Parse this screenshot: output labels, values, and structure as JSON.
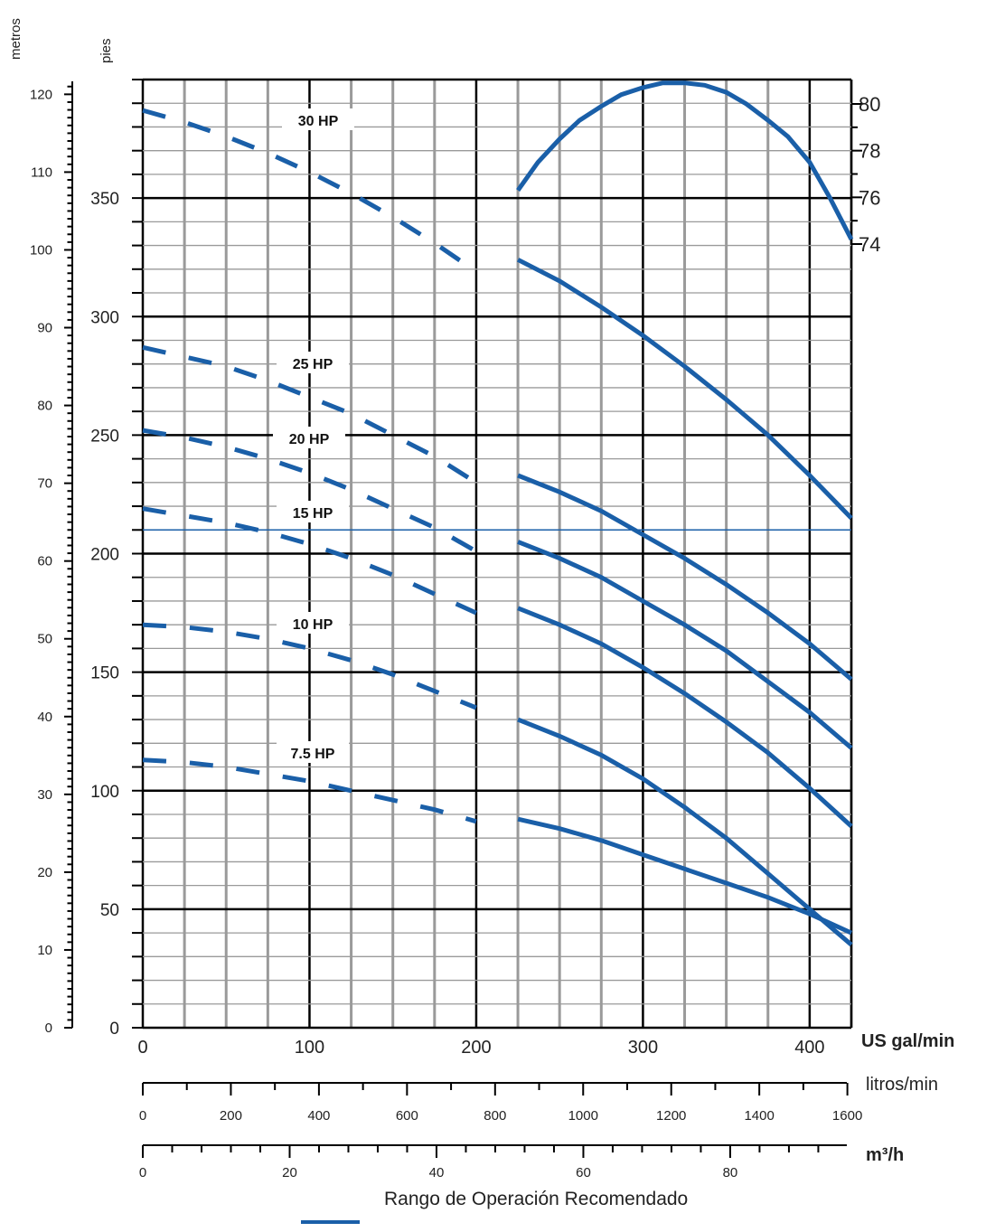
{
  "chart_data": {
    "type": "line",
    "title": "",
    "axes": {
      "flow_gpm": {
        "label": "US gal/min",
        "range": [
          0,
          425
        ],
        "ticks": [
          0,
          100,
          200,
          300,
          400
        ]
      },
      "flow_lpm": {
        "label": "litros/min",
        "range": [
          0,
          1609
        ],
        "ticks": [
          0,
          200,
          400,
          600,
          800,
          1000,
          1200,
          1400,
          1600
        ]
      },
      "flow_m3h": {
        "label": "m³/h",
        "range": [
          0,
          96.5
        ],
        "ticks": [
          0,
          20,
          40,
          60,
          80
        ]
      },
      "head_ft": {
        "label": "pies",
        "range": [
          0,
          400
        ],
        "ticks": [
          0,
          50,
          100,
          150,
          200,
          250,
          300,
          350
        ]
      },
      "head_m": {
        "label": "metros",
        "range": [
          0,
          121.9
        ],
        "ticks": [
          0,
          10,
          20,
          30,
          40,
          50,
          60,
          70,
          80,
          90,
          100,
          110,
          120
        ]
      },
      "efficiency_pct": {
        "range": [
          70,
          82
        ],
        "ticks": [
          74,
          76,
          78,
          80
        ]
      }
    },
    "series": [
      {
        "name": "30 HP",
        "dashed": [
          [
            0,
            387
          ],
          [
            25,
            382
          ],
          [
            50,
            376
          ],
          [
            75,
            369
          ],
          [
            100,
            361
          ],
          [
            125,
            352
          ],
          [
            150,
            342
          ],
          [
            175,
            331
          ],
          [
            200,
            319
          ]
        ],
        "solid": [
          [
            225,
            324
          ],
          [
            250,
            315
          ],
          [
            275,
            304
          ],
          [
            300,
            292
          ],
          [
            325,
            279
          ],
          [
            350,
            265
          ],
          [
            375,
            250
          ],
          [
            400,
            233
          ],
          [
            425,
            215
          ]
        ]
      },
      {
        "name": "25 HP",
        "dashed": [
          [
            0,
            287
          ],
          [
            25,
            283
          ],
          [
            50,
            279
          ],
          [
            75,
            273
          ],
          [
            100,
            266
          ],
          [
            125,
            259
          ],
          [
            150,
            250
          ],
          [
            175,
            241
          ],
          [
            200,
            230
          ]
        ],
        "solid": [
          [
            225,
            233
          ],
          [
            250,
            226
          ],
          [
            275,
            218
          ],
          [
            300,
            208
          ],
          [
            325,
            198
          ],
          [
            350,
            187
          ],
          [
            375,
            175
          ],
          [
            400,
            162
          ],
          [
            425,
            147
          ]
        ]
      },
      {
        "name": "20 HP",
        "dashed": [
          [
            0,
            252
          ],
          [
            25,
            249
          ],
          [
            50,
            245
          ],
          [
            75,
            240
          ],
          [
            100,
            234
          ],
          [
            125,
            227
          ],
          [
            150,
            219
          ],
          [
            175,
            211
          ],
          [
            200,
            201
          ]
        ],
        "solid": [
          [
            225,
            205
          ],
          [
            250,
            198
          ],
          [
            275,
            190
          ],
          [
            300,
            180
          ],
          [
            325,
            170
          ],
          [
            350,
            159
          ],
          [
            375,
            146
          ],
          [
            400,
            133
          ],
          [
            425,
            118
          ]
        ]
      },
      {
        "name": "15 HP",
        "dashed": [
          [
            0,
            219
          ],
          [
            25,
            216
          ],
          [
            50,
            213
          ],
          [
            75,
            209
          ],
          [
            100,
            204
          ],
          [
            125,
            198
          ],
          [
            150,
            191
          ],
          [
            175,
            183
          ],
          [
            200,
            175
          ]
        ],
        "solid": [
          [
            225,
            177
          ],
          [
            250,
            170
          ],
          [
            275,
            162
          ],
          [
            300,
            152
          ],
          [
            325,
            141
          ],
          [
            350,
            129
          ],
          [
            375,
            116
          ],
          [
            400,
            101
          ],
          [
            425,
            85
          ]
        ]
      },
      {
        "name": "10 HP",
        "dashed": [
          [
            0,
            170
          ],
          [
            25,
            169
          ],
          [
            50,
            167
          ],
          [
            75,
            164
          ],
          [
            100,
            160
          ],
          [
            125,
            155
          ],
          [
            150,
            149
          ],
          [
            175,
            142
          ],
          [
            200,
            135
          ]
        ],
        "solid": [
          [
            225,
            130
          ],
          [
            250,
            123
          ],
          [
            275,
            115
          ],
          [
            300,
            105
          ],
          [
            325,
            93
          ],
          [
            350,
            80
          ],
          [
            375,
            65
          ],
          [
            400,
            50
          ],
          [
            425,
            35
          ]
        ]
      },
      {
        "name": "7.5 HP",
        "dashed": [
          [
            0,
            113
          ],
          [
            25,
            112
          ],
          [
            50,
            110
          ],
          [
            75,
            107
          ],
          [
            100,
            104
          ],
          [
            125,
            100
          ],
          [
            150,
            96
          ],
          [
            175,
            92
          ],
          [
            200,
            87
          ]
        ],
        "solid": [
          [
            225,
            88
          ],
          [
            250,
            84
          ],
          [
            275,
            79
          ],
          [
            300,
            73
          ],
          [
            325,
            67
          ],
          [
            350,
            61
          ],
          [
            375,
            55
          ],
          [
            400,
            48
          ],
          [
            425,
            40
          ]
        ]
      }
    ],
    "efficiency_curve": [
      [
        225,
        76.3
      ],
      [
        237,
        77.5
      ],
      [
        250,
        78.5
      ],
      [
        262,
        79.3
      ],
      [
        275,
        79.9
      ],
      [
        287,
        80.4
      ],
      [
        300,
        80.7
      ],
      [
        312,
        80.9
      ],
      [
        325,
        80.9
      ],
      [
        337,
        80.8
      ],
      [
        350,
        80.5
      ],
      [
        362,
        80
      ],
      [
        375,
        79.3
      ],
      [
        387,
        78.6
      ],
      [
        400,
        77.5
      ],
      [
        412,
        76
      ],
      [
        425,
        74.2
      ]
    ],
    "reference_line_ft": 210,
    "legend": {
      "label": "Rango de Operación Recomendado",
      "position": "bottom-center"
    },
    "grid": true
  }
}
